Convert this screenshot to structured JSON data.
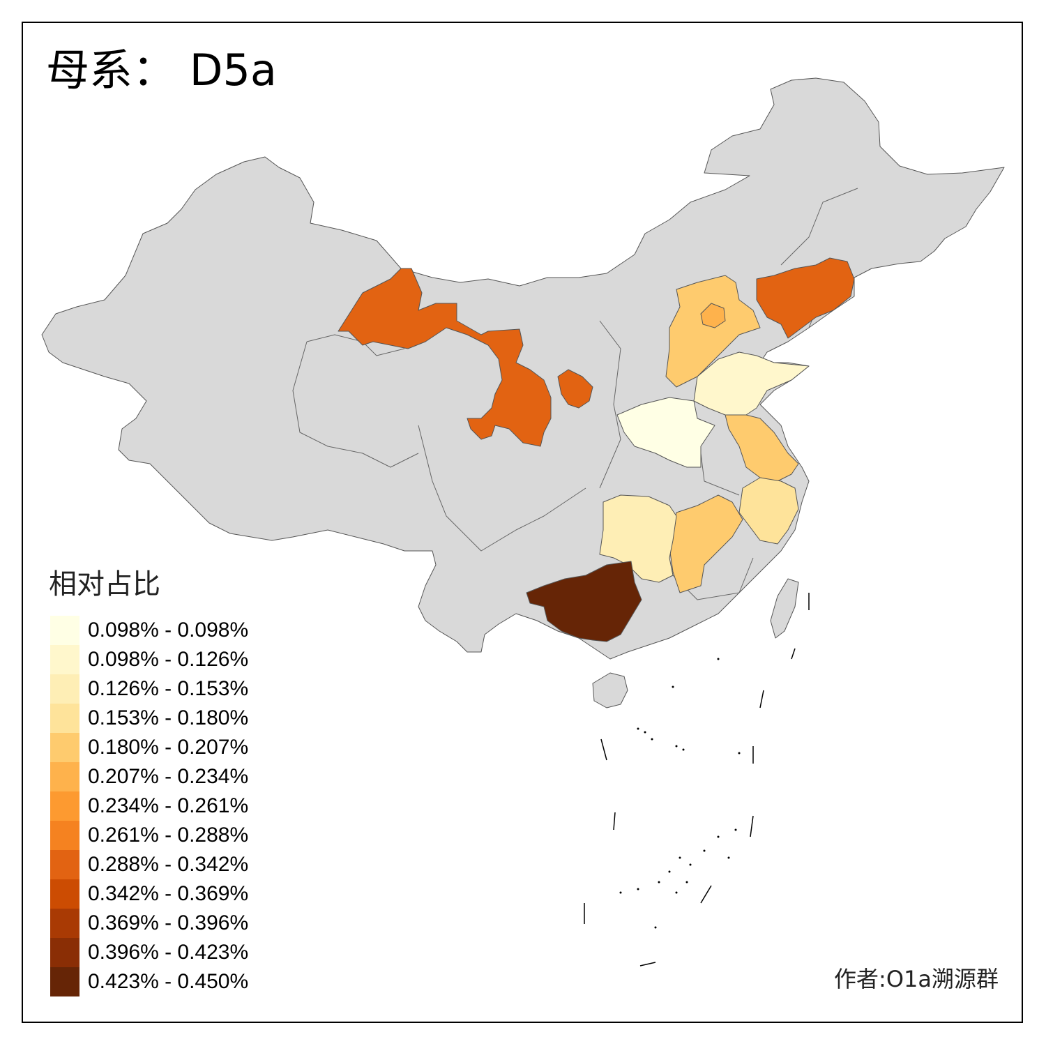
{
  "title": "母系： D5a",
  "legend": {
    "title": "相对占比",
    "bins": [
      {
        "label": "0.098% - 0.098%",
        "color": "#ffffe5"
      },
      {
        "label": "0.098% - 0.126%",
        "color": "#fff7cc"
      },
      {
        "label": "0.126% - 0.153%",
        "color": "#feeeb5"
      },
      {
        "label": "0.153% - 0.180%",
        "color": "#fee39a"
      },
      {
        "label": "0.180% - 0.207%",
        "color": "#fecb6e"
      },
      {
        "label": "0.207% - 0.234%",
        "color": "#feb24c"
      },
      {
        "label": "0.234% - 0.261%",
        "color": "#fd9a30"
      },
      {
        "label": "0.261% - 0.288%",
        "color": "#f58220"
      },
      {
        "label": "0.288% - 0.342%",
        "color": "#e26312"
      },
      {
        "label": "0.342% - 0.369%",
        "color": "#cc4c02"
      },
      {
        "label": "0.369% - 0.396%",
        "color": "#a93a04"
      },
      {
        "label": "0.396% - 0.423%",
        "color": "#8a2e05"
      },
      {
        "label": "0.423% - 0.450%",
        "color": "#662506"
      }
    ]
  },
  "credit": "作者:O1a溯源群",
  "colors": {
    "no_data": "#d9d9d9",
    "border": "#555555"
  }
}
